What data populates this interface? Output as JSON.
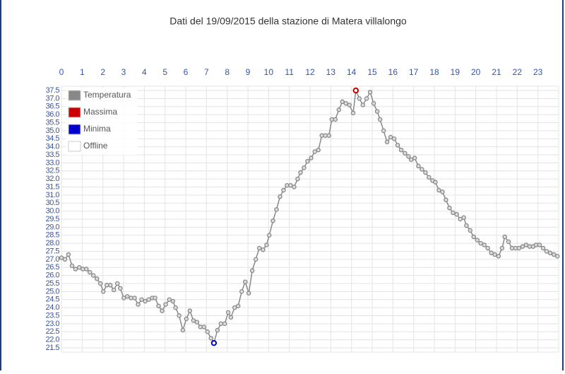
{
  "chart_data": {
    "type": "line",
    "title": "Dati del 19/09/2015 della stazione di Matera villalongo",
    "xlim": [
      0,
      24
    ],
    "xticks": [
      0,
      1,
      2,
      3,
      4,
      5,
      6,
      7,
      8,
      9,
      10,
      11,
      12,
      13,
      14,
      15,
      16,
      17,
      18,
      19,
      20,
      21,
      22,
      23
    ],
    "ylim": [
      21.5,
      37.5
    ],
    "yticks": [
      21.5,
      {
        "value": 22,
        "label": "22.0"
      },
      22.5,
      {
        "value": 23,
        "label": "23.0"
      },
      23.5,
      {
        "value": 24,
        "label": "24.0"
      },
      24.5,
      {
        "value": 25,
        "label": "25.0"
      },
      25.5,
      {
        "value": 26,
        "label": "26.0"
      },
      26.5,
      {
        "value": 27,
        "label": "27.0"
      },
      27.5,
      {
        "value": 28,
        "label": "28.0"
      },
      28.5,
      {
        "value": 29,
        "label": "29.0"
      },
      29.5,
      {
        "value": 30,
        "label": "30.0"
      },
      30.5,
      {
        "value": 31,
        "label": "31.0"
      },
      31.5,
      {
        "value": 32,
        "label": "32.0"
      },
      32.5,
      {
        "value": 33,
        "label": "33.0"
      },
      33.5,
      {
        "value": 34,
        "label": "34.0"
      },
      34.5,
      {
        "value": 35,
        "label": "35.0"
      },
      35.5,
      {
        "value": 36,
        "label": "36.0"
      },
      36.5,
      {
        "value": 37,
        "label": "37.0"
      },
      37.5
    ],
    "grid": true,
    "legend": "top-left",
    "series": [
      {
        "name": "Temperatura",
        "color": "#888888",
        "x": [
          0,
          0.17,
          0.34,
          0.51,
          0.68,
          0.86,
          1.03,
          1.2,
          1.37,
          1.54,
          1.71,
          1.88,
          2.02,
          2.19,
          2.36,
          2.53,
          2.7,
          2.84,
          3.01,
          3.18,
          3.36,
          3.53,
          3.7,
          3.87,
          4.04,
          4.21,
          4.38,
          4.52,
          4.69,
          4.86,
          5.03,
          5.21,
          5.38,
          5.51,
          5.68,
          5.86,
          6.03,
          6.2,
          6.37,
          6.54,
          6.71,
          6.88,
          7.05,
          7.22,
          7.36,
          7.53,
          7.7,
          7.88,
          8.05,
          8.18,
          8.36,
          8.53,
          8.7,
          8.87,
          9.04,
          9.21,
          9.38,
          9.55,
          9.73,
          9.9,
          10.03,
          10.21,
          10.38,
          10.55,
          10.72,
          10.89,
          11.06,
          11.23,
          11.4,
          11.54,
          11.71,
          11.88,
          12.05,
          12.23,
          12.4,
          12.57,
          12.74,
          12.91,
          13.05,
          13.22,
          13.39,
          13.56,
          13.73,
          13.9,
          14.08,
          14.21,
          14.38,
          14.55,
          14.73,
          14.9,
          15.07,
          15.24,
          15.38,
          15.55,
          15.72,
          15.89,
          16.06,
          16.23,
          16.4,
          16.58,
          16.75,
          16.88,
          17.05,
          17.23,
          17.4,
          17.57,
          17.74,
          17.91,
          18.05,
          18.22,
          18.39,
          18.56,
          18.73,
          18.9,
          19.08,
          19.25,
          19.42,
          19.55,
          19.73,
          19.9,
          20.07,
          20.24,
          20.41,
          20.58,
          20.75,
          20.92,
          21.1,
          21.27,
          21.4,
          21.58,
          21.75,
          21.92,
          22.09,
          22.26,
          22.43,
          22.6,
          22.77,
          22.91,
          23.08,
          23.25,
          23.42,
          23.59,
          23.77,
          23.94
        ],
        "values": [
          27.1,
          27.0,
          27.3,
          26.6,
          26.4,
          26.5,
          26.4,
          26.4,
          26.2,
          26.0,
          25.8,
          25.5,
          25.0,
          25.4,
          25.4,
          25.1,
          25.5,
          25.2,
          24.6,
          24.7,
          24.6,
          24.6,
          24.2,
          24.5,
          24.4,
          24.5,
          24.6,
          24.6,
          24.1,
          23.8,
          24.2,
          24.5,
          24.4,
          24.0,
          23.5,
          22.6,
          23.3,
          23.8,
          23.2,
          23.1,
          22.8,
          22.8,
          22.5,
          22.1,
          21.8,
          22.6,
          23.0,
          23.0,
          23.7,
          23.4,
          24.0,
          24.1,
          25.0,
          25.6,
          24.9,
          26.3,
          27.0,
          27.7,
          27.6,
          27.9,
          28.5,
          29.4,
          30.1,
          30.9,
          31.3,
          31.6,
          31.6,
          31.5,
          32.0,
          32.4,
          32.7,
          33.1,
          33.3,
          33.7,
          33.8,
          34.7,
          34.7,
          34.7,
          35.7,
          35.7,
          36.3,
          36.8,
          36.7,
          36.6,
          36.1,
          37.5,
          37.0,
          36.6,
          37.0,
          37.4,
          36.7,
          36.2,
          35.7,
          35.0,
          34.3,
          34.6,
          34.5,
          34.1,
          33.8,
          33.6,
          33.4,
          33.2,
          33.3,
          32.8,
          32.6,
          32.4,
          32.1,
          31.9,
          31.8,
          31.3,
          31.2,
          30.7,
          30.2,
          29.9,
          29.8,
          29.5,
          29.6,
          29.1,
          28.8,
          28.4,
          28.2,
          28.0,
          27.9,
          27.7,
          27.4,
          27.3,
          27.2,
          27.7,
          28.4,
          28.1,
          27.7,
          27.7,
          27.7,
          27.8,
          27.9,
          27.8,
          27.8,
          27.9,
          27.9,
          27.7,
          27.5,
          27.4,
          27.3,
          27.2
        ]
      },
      {
        "name": "Massima",
        "color": "#cc0000",
        "x": [
          14.21
        ],
        "values": [
          37.5
        ]
      },
      {
        "name": "Minima",
        "color": "#0000cc",
        "x": [
          7.36
        ],
        "values": [
          21.8
        ]
      },
      {
        "name": "Offline",
        "color": "#ffffff",
        "x": [],
        "values": []
      }
    ]
  }
}
